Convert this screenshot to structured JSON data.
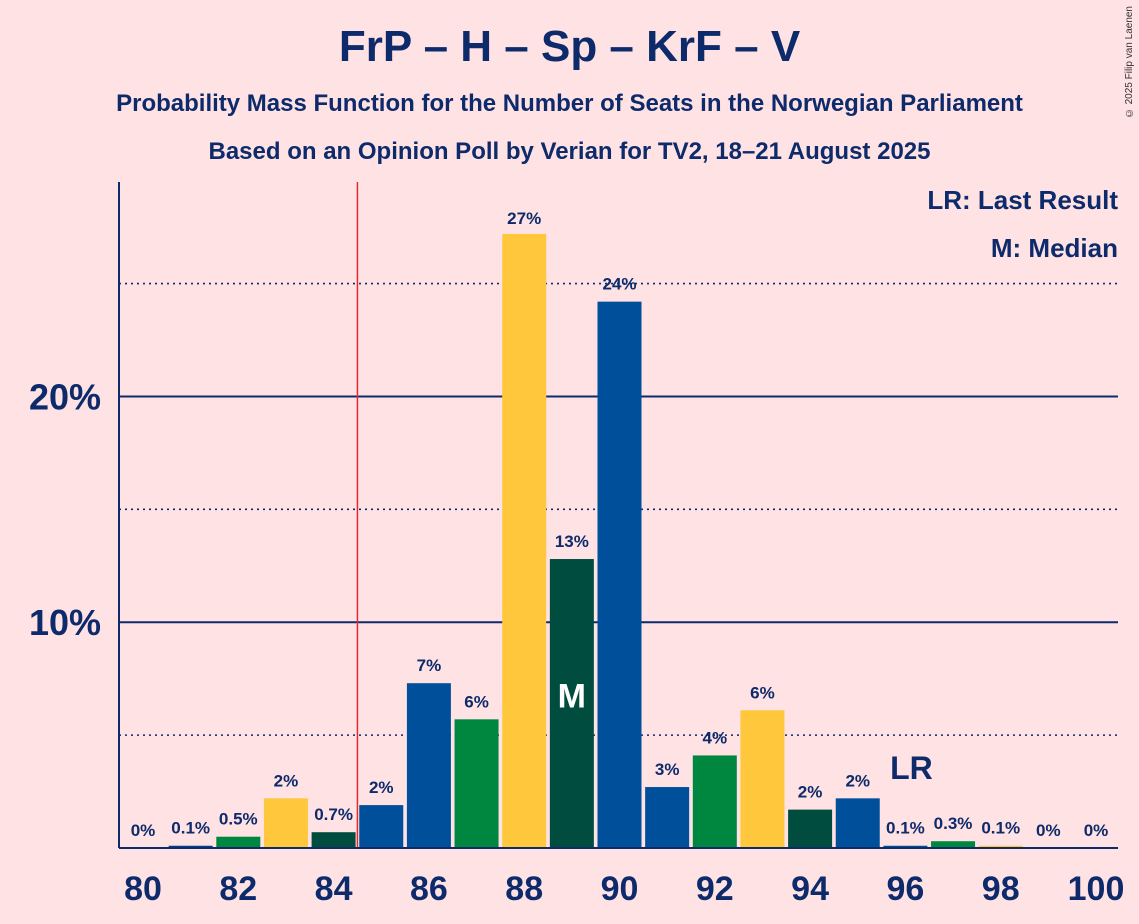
{
  "copyright": "© 2025 Filip van Laenen",
  "chart_data": {
    "type": "bar",
    "title": "FrP – H – Sp – KrF – V",
    "subtitle": "Probability Mass Function for the Number of Seats in the Norwegian Parliament",
    "subtitle2": "Based on an Opinion Poll by Verian for TV2, 18–21 August 2025",
    "legend": {
      "lr": "LR: Last Result",
      "m": "M: Median"
    },
    "xlabel": "",
    "ylabel": "",
    "ylim": [
      0,
      29.5
    ],
    "x_ticks": [
      80,
      82,
      84,
      86,
      88,
      90,
      92,
      94,
      96,
      98,
      100
    ],
    "y_ticks": [
      {
        "value": 10,
        "label": "10%"
      },
      {
        "value": 20,
        "label": "20%"
      }
    ],
    "dotted_gridlines": [
      5,
      15,
      25
    ],
    "last_result": 85,
    "median": 89,
    "median_label": "M",
    "lr_label": "LR",
    "lr_label_seat": 96,
    "bars": [
      {
        "seats": 80,
        "value": 0,
        "label": "0%",
        "color": "#003F8E"
      },
      {
        "seats": 81,
        "value": 0.1,
        "label": "0.1%",
        "color": "#003F8E"
      },
      {
        "seats": 82,
        "value": 0.5,
        "label": "0.5%",
        "color": "#00873F"
      },
      {
        "seats": 83,
        "value": 2.2,
        "label": "2%",
        "color": "#FFC83C"
      },
      {
        "seats": 84,
        "value": 0.7,
        "label": "0.7%",
        "color": "#004D3F"
      },
      {
        "seats": 85,
        "value": 1.9,
        "label": "2%",
        "color": "#004F9A"
      },
      {
        "seats": 86,
        "value": 7.3,
        "label": "7%",
        "color": "#004F9A"
      },
      {
        "seats": 87,
        "value": 5.7,
        "label": "6%",
        "color": "#00873F"
      },
      {
        "seats": 88,
        "value": 27.2,
        "label": "27%",
        "color": "#FFC83C"
      },
      {
        "seats": 89,
        "value": 12.8,
        "label": "13%",
        "color": "#004D3F"
      },
      {
        "seats": 90,
        "value": 24.2,
        "label": "24%",
        "color": "#004F9A"
      },
      {
        "seats": 91,
        "value": 2.7,
        "label": "3%",
        "color": "#004F9A"
      },
      {
        "seats": 92,
        "value": 4.1,
        "label": "4%",
        "color": "#00873F"
      },
      {
        "seats": 93,
        "value": 6.1,
        "label": "6%",
        "color": "#FFC83C"
      },
      {
        "seats": 94,
        "value": 1.7,
        "label": "2%",
        "color": "#004D3F"
      },
      {
        "seats": 95,
        "value": 2.2,
        "label": "2%",
        "color": "#004F9A"
      },
      {
        "seats": 96,
        "value": 0.1,
        "label": "0.1%",
        "color": "#004F9A"
      },
      {
        "seats": 97,
        "value": 0.3,
        "label": "0.3%",
        "color": "#00873F"
      },
      {
        "seats": 98,
        "value": 0.1,
        "label": "0.1%",
        "color": "#FFC83C"
      },
      {
        "seats": 99,
        "value": 0,
        "label": "0%",
        "color": "#004D3F"
      },
      {
        "seats": 100,
        "value": 0,
        "label": "0%",
        "color": "#004F9A"
      }
    ]
  }
}
